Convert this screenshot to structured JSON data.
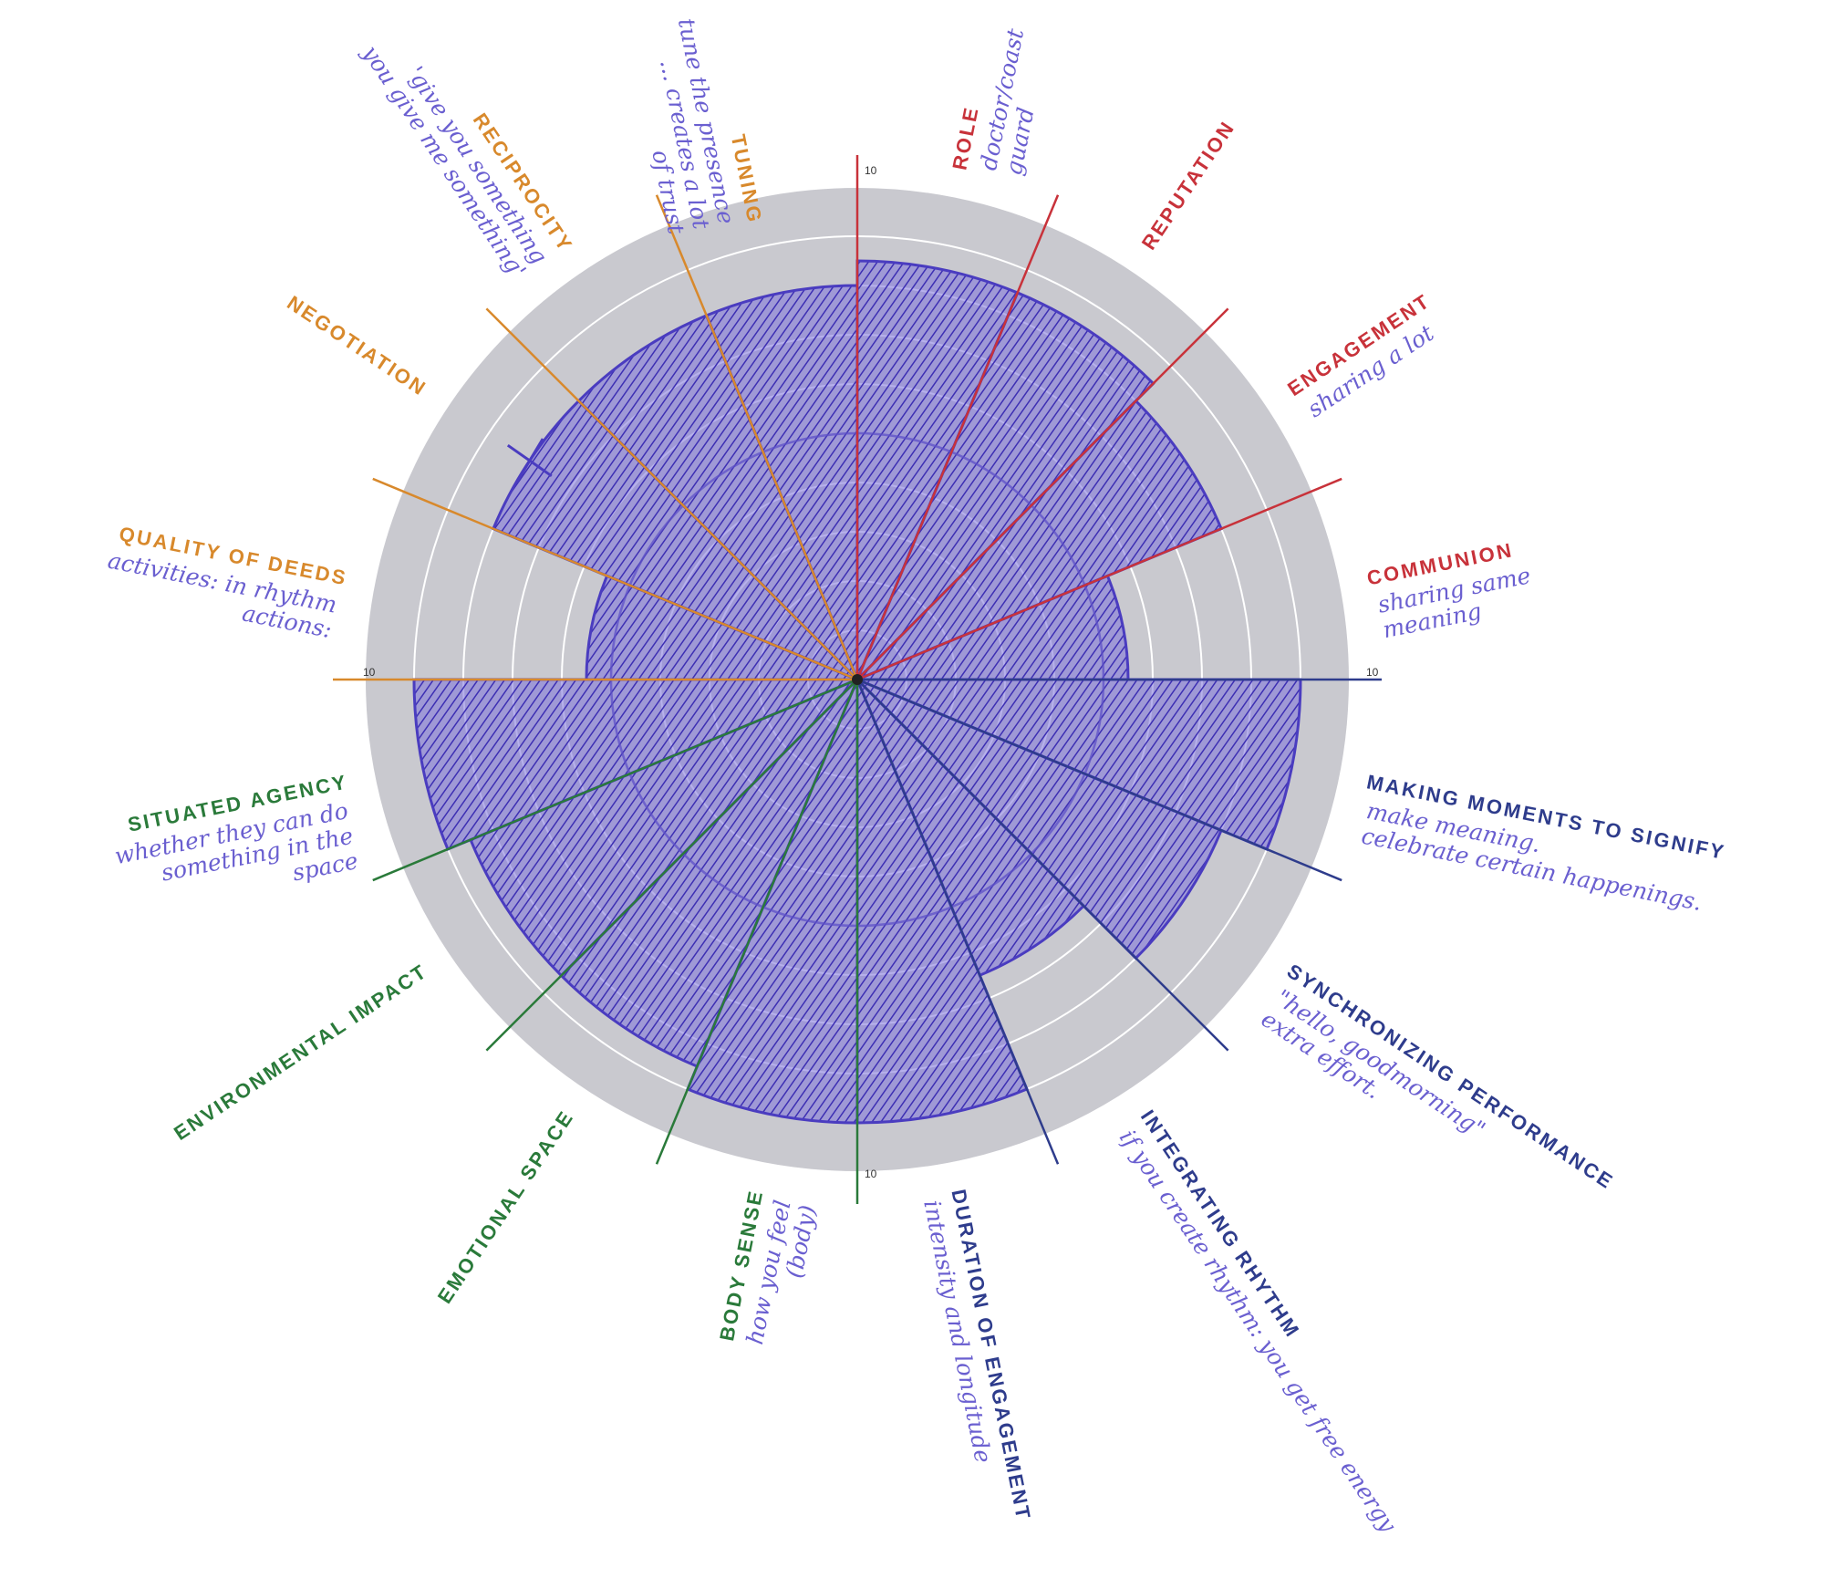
{
  "chart_data": {
    "type": "radial-bar",
    "rmax": 10,
    "rings": 10,
    "tick_label": "10",
    "axes": [
      {
        "name": "ROLE",
        "color": "#c8323a",
        "value": 8.5,
        "note": [
          "doctor/coast",
          "guard"
        ]
      },
      {
        "name": "REPUTATION",
        "color": "#c8323a",
        "value": 8.5,
        "note": []
      },
      {
        "name": "ENGAGEMENT",
        "color": "#c8323a",
        "value": 8,
        "note": [
          "sharing a lot"
        ]
      },
      {
        "name": "COMMUNION",
        "color": "#c8323a",
        "value": 5.5,
        "note": [
          "sharing same",
          "meaning"
        ]
      },
      {
        "name": "MAKING MOMENTS TO SIGNIFY",
        "color": "#2e3c8c",
        "value": 9,
        "note": [
          "make meaning.",
          "celebrate certain happenings."
        ]
      },
      {
        "name": "SYNCHRONIZING PERFORMANCE",
        "color": "#2e3c8c",
        "value": 8,
        "note": [
          "\"hello, goodmorning\"",
          "extra effort."
        ]
      },
      {
        "name": "INTEGRATING RHYTHM",
        "color": "#2e3c8c",
        "value": 6.5,
        "note": [
          "if you create rhythm: you get free energy"
        ]
      },
      {
        "name": "DURATION OF ENGAGEMENT",
        "color": "#2e3c8c",
        "value": 9,
        "note": [
          "intensity and longitude"
        ]
      },
      {
        "name": "BODY SENSE",
        "color": "#2a7a3a",
        "value": 9,
        "note": [
          "how you feel",
          "(body)"
        ]
      },
      {
        "name": "EMOTIONAL SPACE",
        "color": "#2a7a3a",
        "value": 8.5,
        "note": []
      },
      {
        "name": "ENVIRONMENTAL IMPACT",
        "color": "#2a7a3a",
        "value": 8.5,
        "note": []
      },
      {
        "name": "SITUATED AGENCY",
        "color": "#2a7a3a",
        "value": 9,
        "note": [
          "whether they can do",
          "something in the",
          "space"
        ]
      },
      {
        "name": "QUALITY OF DEEDS",
        "color": "#d8892c",
        "value": 5.5,
        "note": [
          "activities: in rhythm",
          "actions:"
        ]
      },
      {
        "name": "NEGOTIATION",
        "color": "#d8892c",
        "value": 8,
        "note": []
      },
      {
        "name": "RECIPROCITY",
        "color": "#d8892c",
        "value": 8,
        "note": [
          "'give you something",
          "you give me something'"
        ]
      },
      {
        "name": "TUNING",
        "color": "#d8892c",
        "value": 8,
        "note": [
          "tune the presence",
          "... creates a lot",
          "of trust"
        ]
      }
    ],
    "inner_ring": {
      "value": 5,
      "color": "#5b4fc4"
    },
    "marks": [
      {
        "axis": "NEGOTIATION",
        "symbol": "X"
      }
    ],
    "fill_color": "#4a3cc0",
    "disk_color": "#c9c9cf",
    "ring_color": "#ffffff"
  }
}
